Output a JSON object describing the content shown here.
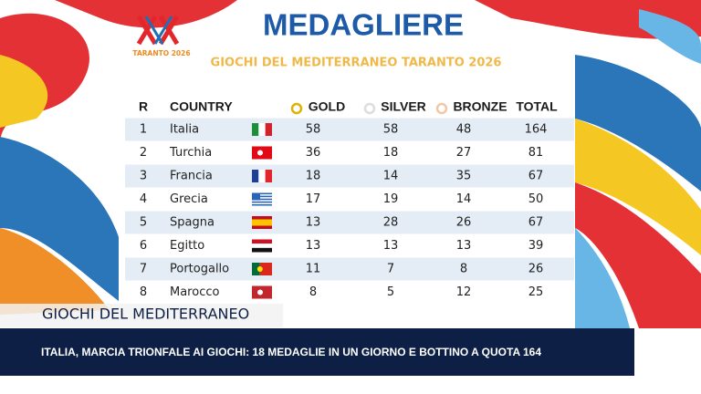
{
  "header": {
    "title": "MEDAGLIERE",
    "subtitle": "GIOCHI DEL MEDITERRANEO TARANTO 2026",
    "logo_text": "TARANTO 2026"
  },
  "table": {
    "columns": [
      "R",
      "COUNTRY",
      "GOLD",
      "SILVER",
      "BRONZE",
      "TOTAL"
    ],
    "rows": [
      [
        1,
        "Italia",
        58,
        58,
        48,
        164
      ],
      [
        2,
        "Turchia",
        36,
        18,
        27,
        81
      ],
      [
        3,
        "Francia",
        18,
        14,
        35,
        67
      ],
      [
        4,
        "Grecia",
        17,
        19,
        14,
        50
      ],
      [
        5,
        "Spagna",
        13,
        28,
        26,
        67
      ],
      [
        6,
        "Egitto",
        13,
        13,
        13,
        39
      ],
      [
        7,
        "Portogallo",
        11,
        7,
        8,
        26
      ],
      [
        8,
        "Marocco",
        8,
        5,
        12,
        25
      ]
    ]
  },
  "lower_third": {
    "label": "GIOCHI DEL MEDITERRANEO",
    "headline": "ITALIA, MARCIA TRIONFALE AI GIOCHI: 18 MEDAGLIE IN UN GIORNO E BOTTINO A QUOTA 164"
  }
}
